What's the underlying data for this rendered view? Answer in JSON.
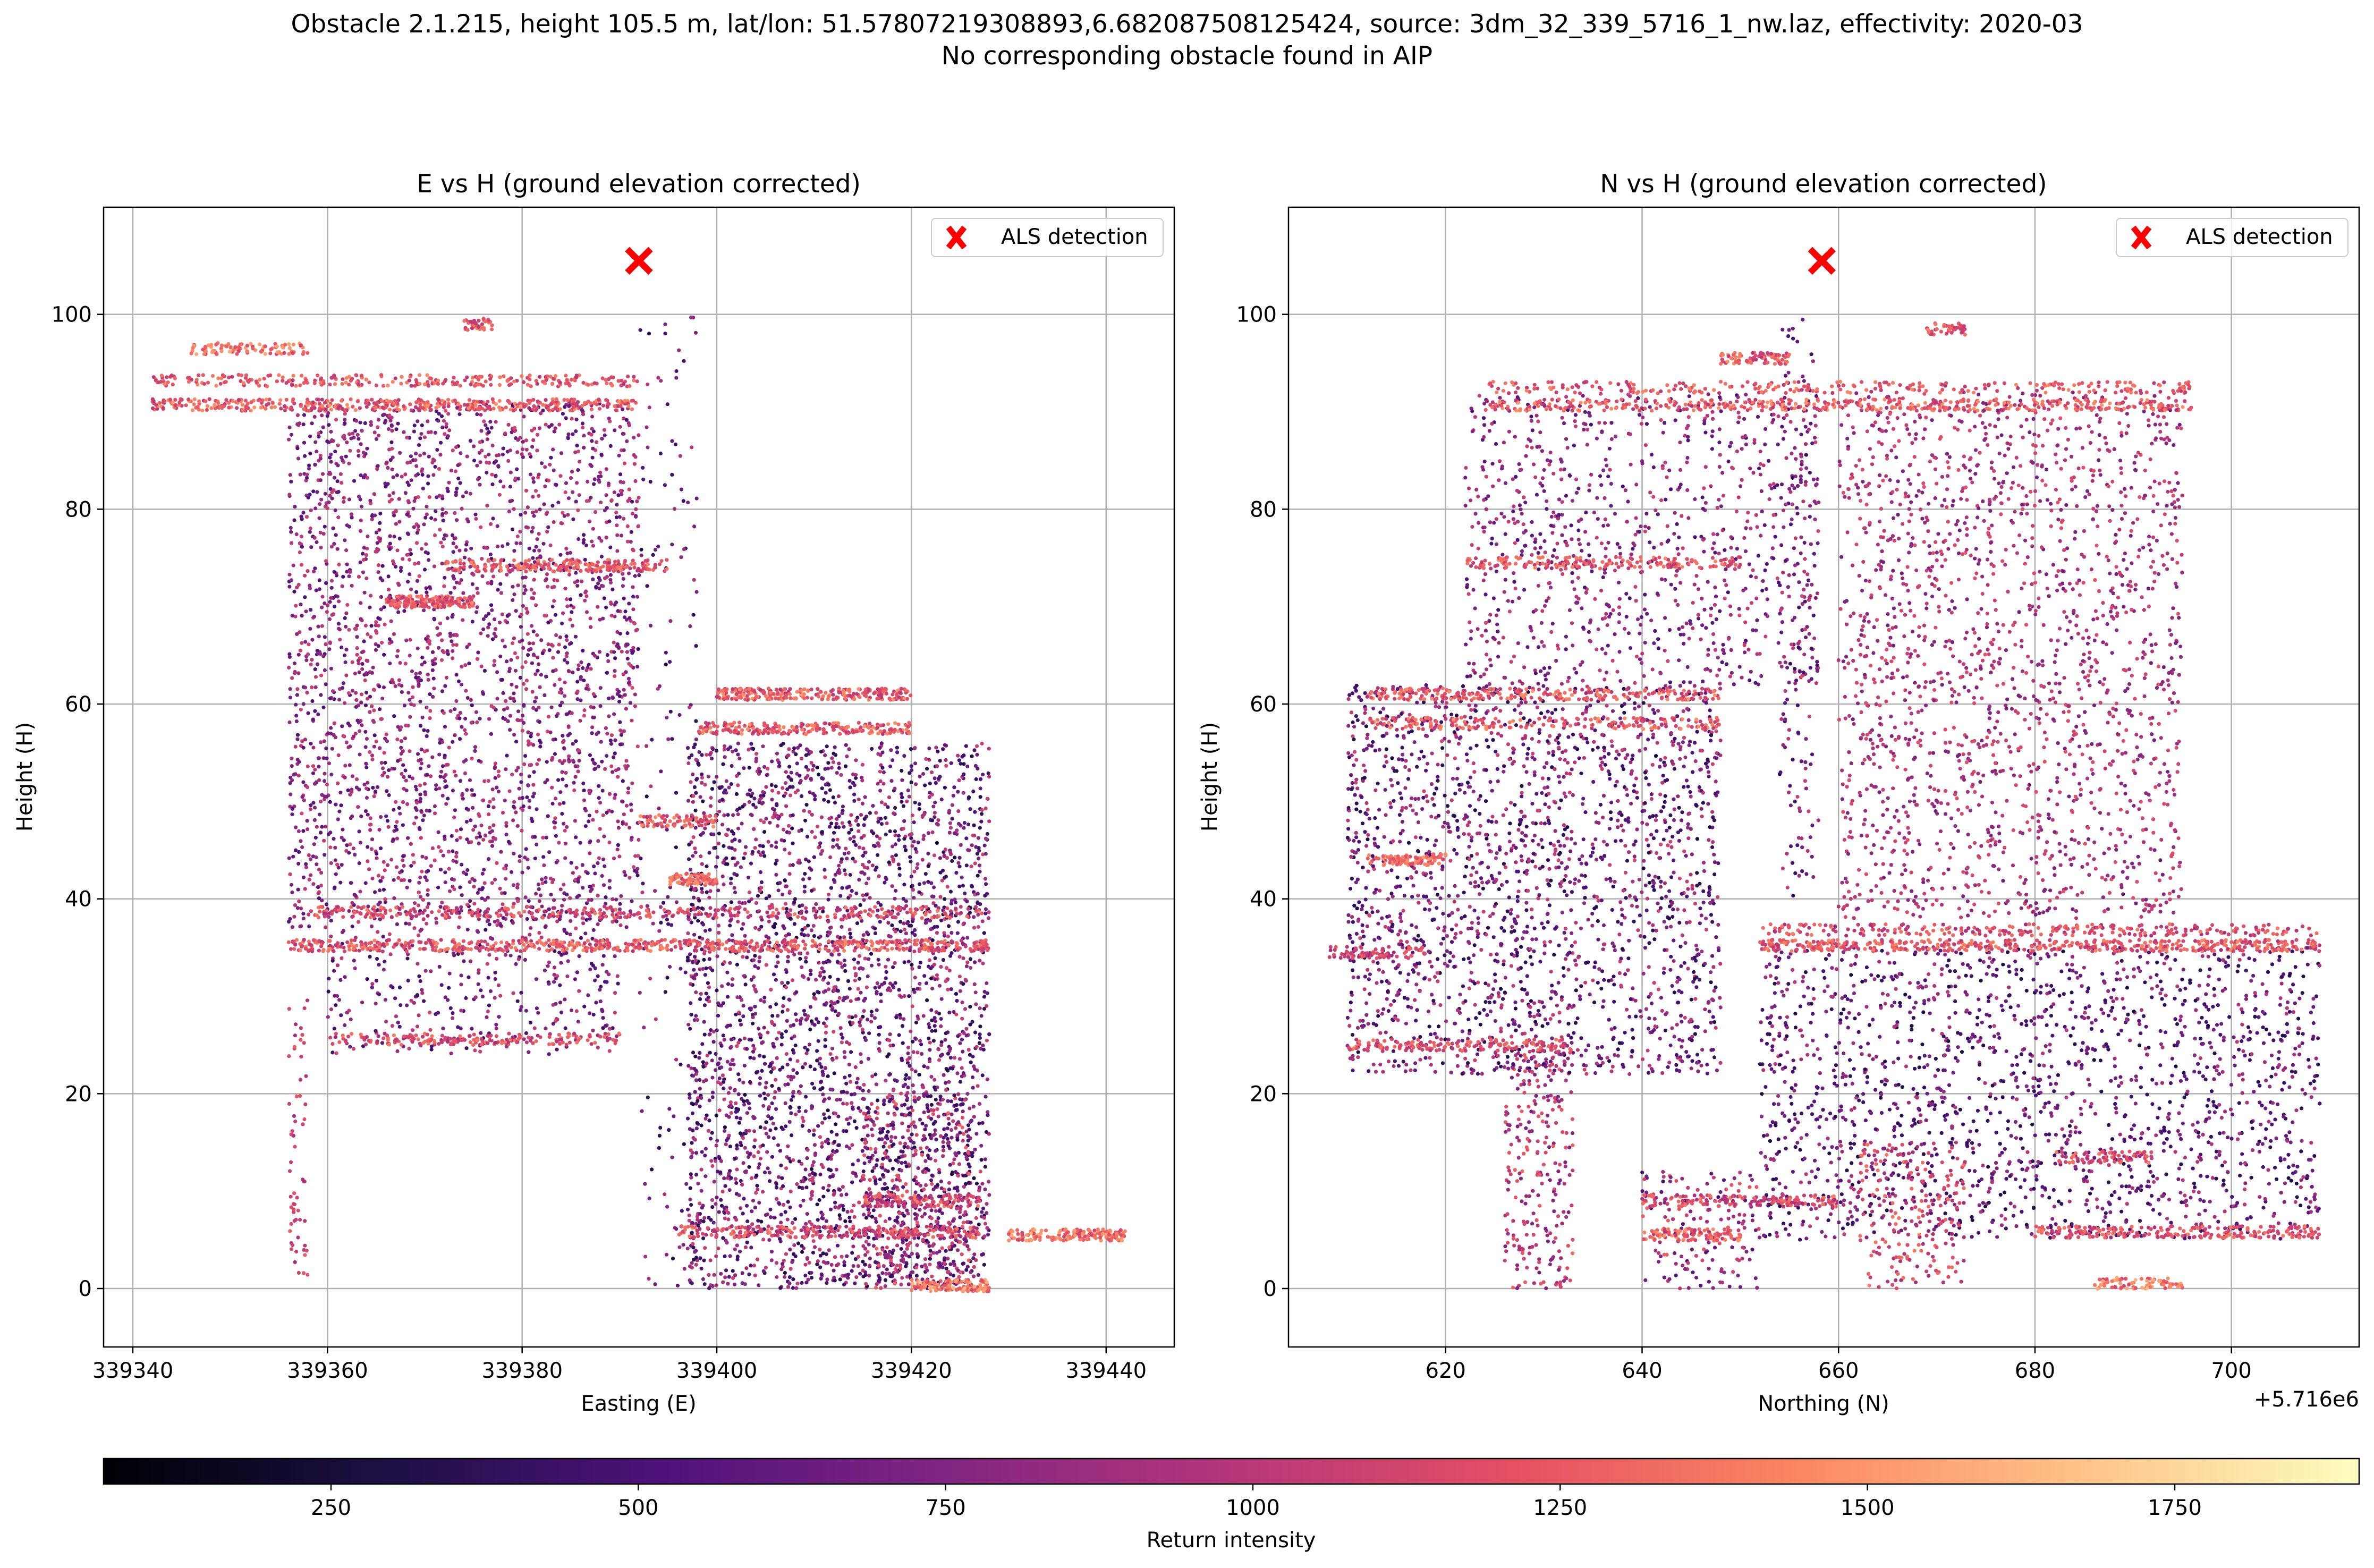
{
  "figure": {
    "title_line1": "Obstacle 2.1.215, height 105.5 m, lat/lon: 51.57807219308893,6.682087508125424, source: 3dm_32_339_5716_1_nw.laz, effectivity: 2020-03",
    "title_line2": "No corresponding obstacle found in AIP"
  },
  "colors": {
    "marker": "#ff0000",
    "grid": "#b0b0b0",
    "colormap": "magma"
  },
  "chart_data": [
    {
      "type": "scatter",
      "title": "E vs H (ground elevation corrected)",
      "xlabel": "Easting (E)",
      "ylabel": "Height (H)",
      "xlim": [
        339337,
        339447
      ],
      "ylim": [
        -6,
        111
      ],
      "xticks": [
        339340,
        339360,
        339380,
        339400,
        339420,
        339440
      ],
      "xtick_labels": [
        "339340",
        "339360",
        "339380",
        "339400",
        "339420",
        "339440"
      ],
      "yticks": [
        0,
        20,
        40,
        60,
        80,
        100
      ],
      "ytick_labels": [
        "0",
        "20",
        "40",
        "60",
        "80",
        "100"
      ],
      "offset_label": "",
      "grid": true,
      "legend": {
        "position": "top-right",
        "entries": [
          "ALS detection"
        ]
      },
      "detection": {
        "x": 339392,
        "y": 105.5
      },
      "blocks": [
        {
          "x": [
            339356,
            339392
          ],
          "y": [
            37,
            91
          ],
          "n": 2600,
          "c": [
            500,
            1100
          ]
        },
        {
          "x": [
            339392,
            339398
          ],
          "y": [
            0,
            100
          ],
          "n": 150,
          "c": [
            300,
            1000
          ]
        },
        {
          "x": [
            339397,
            339428
          ],
          "y": [
            0,
            56
          ],
          "n": 3000,
          "c": [
            300,
            1100
          ]
        },
        {
          "x": [
            339356,
            339358
          ],
          "y": [
            0,
            30
          ],
          "n": 60,
          "c": [
            900,
            1300
          ]
        },
        {
          "x": [
            339360,
            339390
          ],
          "y": [
            24,
            37
          ],
          "n": 300,
          "c": [
            400,
            1100
          ]
        },
        {
          "x": [
            339415,
            339426
          ],
          "y": [
            0,
            20
          ],
          "n": 400,
          "c": [
            400,
            1300
          ]
        }
      ],
      "bands": [
        {
          "x": [
            339342,
            339392
          ],
          "y": 90.7,
          "n": 450,
          "c": [
            1000,
            1500
          ]
        },
        {
          "x": [
            339342,
            339392
          ],
          "y": 93.2,
          "n": 260,
          "c": [
            1000,
            1450
          ]
        },
        {
          "x": [
            339346,
            339358
          ],
          "y": 96.5,
          "n": 90,
          "c": [
            1100,
            1600
          ]
        },
        {
          "x": [
            339374,
            339377
          ],
          "y": 99,
          "n": 40,
          "c": [
            1000,
            1400
          ]
        },
        {
          "x": [
            339356,
            339428
          ],
          "y": 35.2,
          "n": 650,
          "c": [
            1000,
            1450
          ]
        },
        {
          "x": [
            339358,
            339428
          ],
          "y": 38.6,
          "n": 380,
          "c": [
            900,
            1400
          ]
        },
        {
          "x": [
            339372,
            339395
          ],
          "y": 74.2,
          "n": 220,
          "c": [
            1000,
            1450
          ]
        },
        {
          "x": [
            339366,
            339375
          ],
          "y": 70.5,
          "n": 180,
          "c": [
            1000,
            1450
          ]
        },
        {
          "x": [
            339400,
            339420
          ],
          "y": 61,
          "n": 260,
          "c": [
            1000,
            1500
          ]
        },
        {
          "x": [
            339398,
            339420
          ],
          "y": 57.5,
          "n": 220,
          "c": [
            1000,
            1500
          ]
        },
        {
          "x": [
            339360,
            339390
          ],
          "y": 25.6,
          "n": 200,
          "c": [
            900,
            1400
          ]
        },
        {
          "x": [
            339396,
            339427
          ],
          "y": 5.8,
          "n": 260,
          "c": [
            900,
            1400
          ]
        },
        {
          "x": [
            339415,
            339427
          ],
          "y": 9,
          "n": 120,
          "c": [
            900,
            1400
          ]
        },
        {
          "x": [
            339420,
            339428
          ],
          "y": 0.3,
          "n": 120,
          "c": [
            1100,
            1650
          ]
        },
        {
          "x": [
            339430,
            339442
          ],
          "y": 5.5,
          "n": 150,
          "c": [
            1100,
            1600
          ]
        },
        {
          "x": [
            339392,
            339400
          ],
          "y": 48,
          "n": 80,
          "c": [
            1000,
            1500
          ]
        },
        {
          "x": [
            339395,
            339400
          ],
          "y": 42,
          "n": 80,
          "c": [
            1100,
            1500
          ]
        }
      ]
    },
    {
      "type": "scatter",
      "title": "N vs H (ground elevation corrected)",
      "xlabel": "Northing (N)",
      "ylabel": "Height (H)",
      "xlim": [
        5716604,
        5716713
      ],
      "ylim": [
        -6,
        111
      ],
      "xticks": [
        5716620,
        5716640,
        5716660,
        5716680,
        5716700
      ],
      "xtick_labels": [
        "620",
        "640",
        "660",
        "680",
        "700"
      ],
      "yticks": [
        0,
        20,
        40,
        60,
        80,
        100
      ],
      "ytick_labels": [
        "0",
        "20",
        "40",
        "60",
        "80",
        "100"
      ],
      "offset_label": "+5.716e6",
      "grid": true,
      "legend": {
        "position": "top-right",
        "entries": [
          "ALS detection"
        ]
      },
      "detection": {
        "x": 5716658.3,
        "y": 105.5
      },
      "blocks": [
        {
          "x": [
            5716622,
            5716658
          ],
          "y": [
            62,
            92
          ],
          "n": 900,
          "c": [
            500,
            1100
          ]
        },
        {
          "x": [
            5716660,
            5716695
          ],
          "y": [
            38,
            92
          ],
          "n": 1800,
          "c": [
            700,
            1200
          ]
        },
        {
          "x": [
            5716610,
            5716648
          ],
          "y": [
            22,
            62
          ],
          "n": 2000,
          "c": [
            300,
            1100
          ]
        },
        {
          "x": [
            5716652,
            5716709
          ],
          "y": [
            5,
            35
          ],
          "n": 1800,
          "c": [
            300,
            1000
          ]
        },
        {
          "x": [
            5716626,
            5716633
          ],
          "y": [
            0,
            25
          ],
          "n": 250,
          "c": [
            700,
            1300
          ]
        },
        {
          "x": [
            5716662,
            5716673
          ],
          "y": [
            0,
            15
          ],
          "n": 200,
          "c": [
            900,
            1400
          ]
        },
        {
          "x": [
            5716654,
            5716658
          ],
          "y": [
            40,
            100
          ],
          "n": 150,
          "c": [
            400,
            1100
          ]
        },
        {
          "x": [
            5716640,
            5716652
          ],
          "y": [
            0,
            12
          ],
          "n": 150,
          "c": [
            500,
            1300
          ]
        }
      ],
      "bands": [
        {
          "x": [
            5716624,
            5716696
          ],
          "y": 90.7,
          "n": 450,
          "c": [
            1000,
            1500
          ]
        },
        {
          "x": [
            5716624,
            5716696
          ],
          "y": 92.5,
          "n": 250,
          "c": [
            1000,
            1450
          ]
        },
        {
          "x": [
            5716652,
            5716709
          ],
          "y": 35.2,
          "n": 500,
          "c": [
            1000,
            1450
          ]
        },
        {
          "x": [
            5716652,
            5716709
          ],
          "y": 36.8,
          "n": 260,
          "c": [
            900,
            1400
          ]
        },
        {
          "x": [
            5716622,
            5716650
          ],
          "y": 74.5,
          "n": 180,
          "c": [
            1000,
            1450
          ]
        },
        {
          "x": [
            5716612,
            5716648
          ],
          "y": 61,
          "n": 260,
          "c": [
            1000,
            1500
          ]
        },
        {
          "x": [
            5716612,
            5716648
          ],
          "y": 58,
          "n": 200,
          "c": [
            1000,
            1500
          ]
        },
        {
          "x": [
            5716610,
            5716633
          ],
          "y": 25,
          "n": 150,
          "c": [
            1000,
            1400
          ]
        },
        {
          "x": [
            5716608,
            5716618
          ],
          "y": 34.5,
          "n": 80,
          "c": [
            900,
            1300
          ]
        },
        {
          "x": [
            5716612,
            5716620
          ],
          "y": 44,
          "n": 90,
          "c": [
            1100,
            1500
          ]
        },
        {
          "x": [
            5716640,
            5716660
          ],
          "y": 9,
          "n": 160,
          "c": [
            900,
            1400
          ]
        },
        {
          "x": [
            5716640,
            5716650
          ],
          "y": 5.5,
          "n": 100,
          "c": [
            1000,
            1500
          ]
        },
        {
          "x": [
            5716680,
            5716709
          ],
          "y": 5.8,
          "n": 220,
          "c": [
            1000,
            1400
          ]
        },
        {
          "x": [
            5716648,
            5716655
          ],
          "y": 95.5,
          "n": 80,
          "c": [
            1000,
            1500
          ]
        },
        {
          "x": [
            5716669,
            5716673
          ],
          "y": 98.5,
          "n": 40,
          "c": [
            1000,
            1400
          ]
        },
        {
          "x": [
            5716682,
            5716692
          ],
          "y": 13.5,
          "n": 80,
          "c": [
            900,
            1400
          ]
        },
        {
          "x": [
            5716686,
            5716695
          ],
          "y": 0.5,
          "n": 80,
          "c": [
            1100,
            1650
          ]
        }
      ]
    }
  ],
  "colorbar": {
    "label": "Return intensity",
    "range": [
      65,
      1900
    ],
    "ticks": [
      250,
      500,
      750,
      1000,
      1250,
      1500,
      1750
    ],
    "tick_labels": [
      "250",
      "500",
      "750",
      "1000",
      "1250",
      "1500",
      "1750"
    ]
  }
}
